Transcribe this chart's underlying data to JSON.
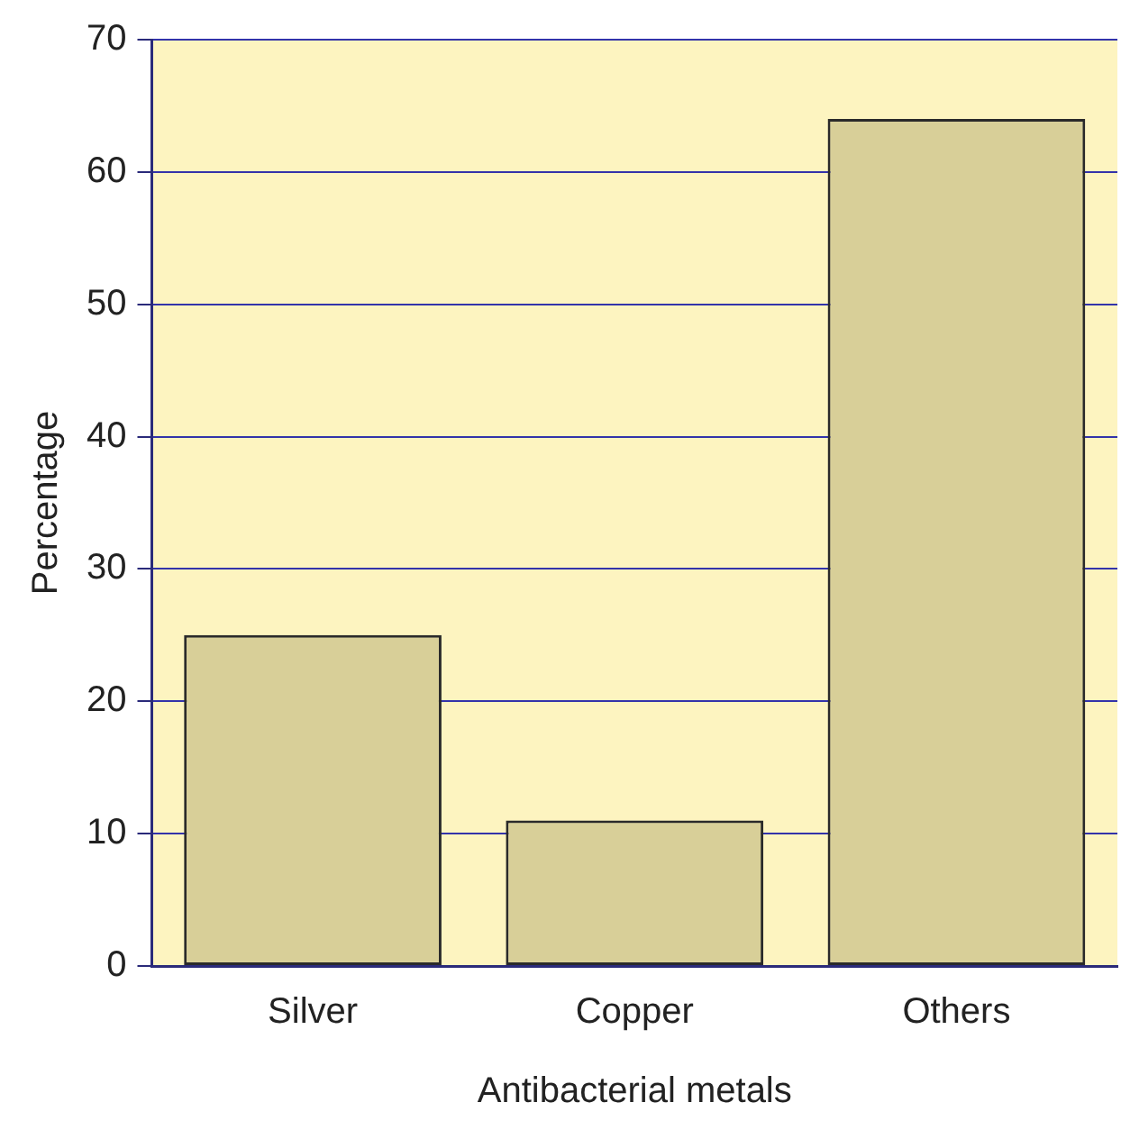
{
  "chart_data": {
    "type": "bar",
    "xlabel": "Antibacterial metals",
    "ylabel": "Percentage",
    "categories": [
      "Silver",
      "Copper",
      "Others"
    ],
    "values": [
      25,
      11,
      64
    ],
    "color": "#d8cf98",
    "ylim": [
      0,
      70
    ],
    "yticks": [
      0,
      10,
      20,
      30,
      40,
      50,
      60,
      70
    ],
    "grid": "y"
  }
}
